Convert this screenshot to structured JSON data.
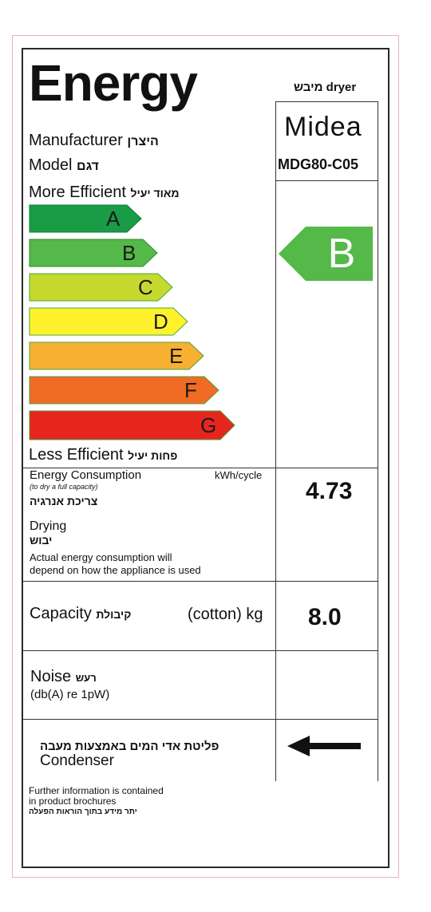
{
  "header": {
    "title": "Energy",
    "appliance_type": "מיבש dryer"
  },
  "manufacturer": {
    "label": "Manufacturer",
    "label_he": "היצרן",
    "brand": "Midea"
  },
  "model": {
    "label": "Model",
    "label_he": "דגם",
    "value": "MDG80-C05"
  },
  "efficiency": {
    "more_label": "More Efficient",
    "more_label_he": "מאוד יעיל",
    "less_label": "Less Efficient",
    "less_label_he": "פחות יעיל",
    "classes": [
      {
        "letter": "A",
        "color": "#1a9c47"
      },
      {
        "letter": "B",
        "color": "#54b948"
      },
      {
        "letter": "C",
        "color": "#c5d92e"
      },
      {
        "letter": "D",
        "color": "#fff22d"
      },
      {
        "letter": "E",
        "color": "#f8b033"
      },
      {
        "letter": "F",
        "color": "#f06b24"
      },
      {
        "letter": "G",
        "color": "#e7251f"
      }
    ],
    "rating": {
      "letter": "B",
      "color": "#54b948"
    }
  },
  "energy_consumption": {
    "label": "Energy Consumption",
    "unit": "kWh/cycle",
    "note": "(to dry a full capacity)",
    "label_he": "צריכת אנרגיה",
    "value": "4.73"
  },
  "drying": {
    "label": "Drying",
    "label_he": "יבוש",
    "note_line1": "Actual energy consumption will",
    "note_line2": "depend on how the appliance is used"
  },
  "capacity": {
    "label": "Capacity",
    "label_he": "קיבולת",
    "unit": "(cotton) kg",
    "value": "8.0"
  },
  "noise": {
    "label": "Noise",
    "label_he": "רעש",
    "unit": "(db(A) re 1pW)"
  },
  "type": {
    "label_he": "פליטת אדי המים באמצעות מעבה",
    "label": "Condenser"
  },
  "footer": {
    "line1": "Further information is contained",
    "line2": "in product brochures",
    "line3_he": "יתר מידע בתוך הוראות הפעלה"
  }
}
